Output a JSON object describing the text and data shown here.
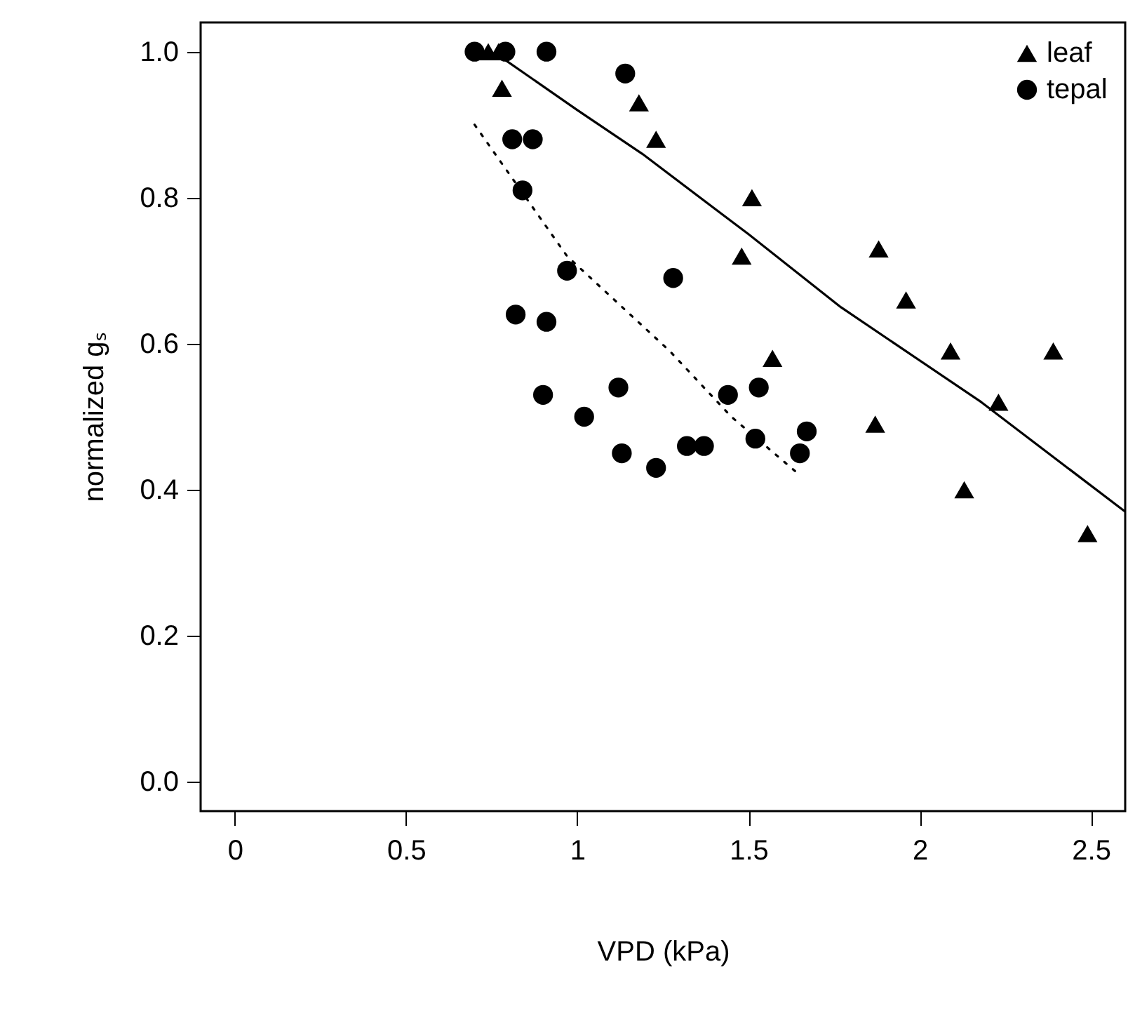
{
  "chart_data": {
    "type": "scatter",
    "xlabel": "VPD (kPa)",
    "ylabel": "normalized gₛ",
    "xlim": [
      -0.1,
      2.6
    ],
    "ylim": [
      -0.04,
      1.04
    ],
    "xticks": [
      0,
      0.5,
      1,
      1.5,
      2,
      2.5
    ],
    "yticks": [
      {
        "value": 0,
        "label": "0.0"
      },
      {
        "value": 0.2,
        "label": "0.2"
      },
      {
        "value": 0.4,
        "label": "0.4"
      },
      {
        "value": 0.6,
        "label": "0.6"
      },
      {
        "value": 0.8,
        "label": "0.8"
      },
      {
        "value": 1,
        "label": "1.0"
      }
    ],
    "grid": false,
    "legend": "top right",
    "series": [
      {
        "name": "leaf",
        "marker": "triangle",
        "color": "#000000",
        "x": [
          0.74,
          0.77,
          0.78,
          1.18,
          1.23,
          1.51,
          1.48,
          1.57,
          1.88,
          1.96,
          2.09,
          2.39,
          2.23,
          1.87,
          2.13,
          2.49
        ],
        "values": [
          1.0,
          1.0,
          0.95,
          0.93,
          0.88,
          0.8,
          0.72,
          0.58,
          0.73,
          0.66,
          0.59,
          0.59,
          0.52,
          0.49,
          0.4,
          0.34
        ]
      },
      {
        "name": "tepal",
        "marker": "circle",
        "color": "#000000",
        "x": [
          0.7,
          0.79,
          0.91,
          1.14,
          0.81,
          0.87,
          0.84,
          0.97,
          1.28,
          0.82,
          0.91,
          0.9,
          1.02,
          1.12,
          1.13,
          1.23,
          1.32,
          1.37,
          1.44,
          1.53,
          1.52,
          1.67,
          1.65
        ],
        "values": [
          1.0,
          1.0,
          1.0,
          0.97,
          0.88,
          0.88,
          0.81,
          0.7,
          0.69,
          0.64,
          0.63,
          0.53,
          0.5,
          0.54,
          0.45,
          0.43,
          0.46,
          0.46,
          0.53,
          0.54,
          0.47,
          0.48,
          0.45
        ]
      },
      {
        "type": "line",
        "line_style": "solid",
        "color": "#000000",
        "x": [
          0.77,
          1.0,
          1.19,
          1.5,
          1.77,
          2.18,
          2.6
        ],
        "values": [
          0.995,
          0.92,
          0.86,
          0.75,
          0.65,
          0.52,
          0.37
        ]
      },
      {
        "type": "line",
        "line_style": "dotted",
        "color": "#000000",
        "x": [
          0.7,
          0.97,
          1.27,
          1.45,
          1.65
        ],
        "values": [
          0.9,
          0.72,
          0.59,
          0.5,
          0.42
        ]
      }
    ]
  }
}
